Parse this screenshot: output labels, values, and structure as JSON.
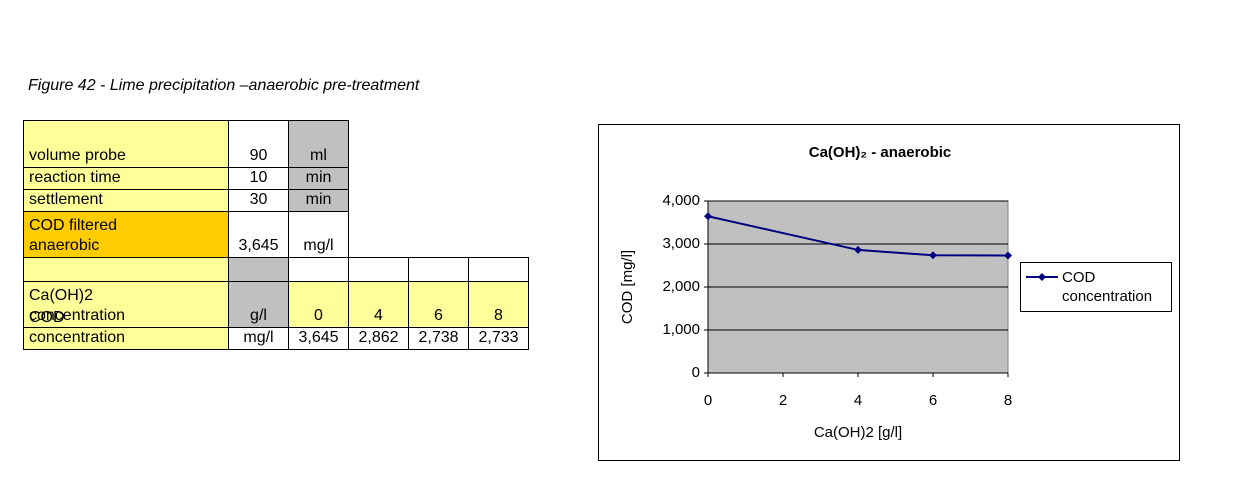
{
  "caption": "Figure 42 - Lime precipitation –anaerobic pre-treatment",
  "table": {
    "rows": [
      [
        "volume probe",
        "90",
        "ml"
      ],
      [
        "reaction time",
        "10",
        "min"
      ],
      [
        "settlement",
        "30",
        "min"
      ],
      [
        "COD filtered anaerobic",
        "3,645",
        "mg/l"
      ],
      [
        "Ca(OH)2 concentration",
        "g/l",
        "0",
        "4",
        "6",
        "8"
      ],
      [
        "COD concentration",
        "mg/l",
        "3,645",
        "2,862",
        "2,738",
        "2,733"
      ]
    ]
  },
  "chart_data": {
    "type": "line",
    "title": "Ca(OH)₂ - anaerobic",
    "x_label": "Ca(OH)2 [g/l]",
    "y_label": "COD  [mg/l]",
    "x": [
      0,
      4,
      6,
      8
    ],
    "series": [
      {
        "name": "COD concentration",
        "color": "#000080",
        "values": [
          3645,
          2862,
          2738,
          2733
        ]
      }
    ],
    "xlim": [
      0,
      8
    ],
    "xticks": [
      0,
      2,
      4,
      6,
      8
    ],
    "ylim": [
      0,
      4000
    ],
    "yticks": [
      0,
      {
        "value": 1000,
        "label": "1,000"
      },
      {
        "value": 2000,
        "label": "2,000"
      },
      {
        "value": 3000,
        "label": "3,000"
      },
      {
        "value": 4000,
        "label": "4,000"
      }
    ],
    "grid": true,
    "plot_background": "#c0c0c0",
    "legend": "right"
  }
}
